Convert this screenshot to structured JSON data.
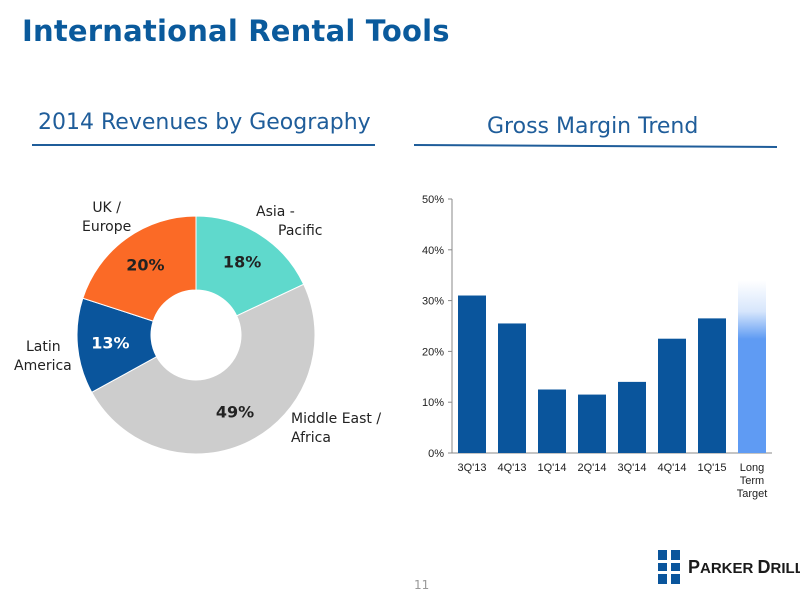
{
  "header": {
    "title": "International Rental Tools"
  },
  "left_panel": {
    "title": "2014 Revenues by Geography"
  },
  "right_panel": {
    "title": "Gross Margin Trend"
  },
  "footer": {
    "page_number": "11",
    "logo_text_1": "P",
    "logo_text_2": "ARKER ",
    "logo_text_3": "D",
    "logo_text_4": "RILLING"
  },
  "colors": {
    "teal": "#5fd9cc",
    "gray": "#cdcdcd",
    "navy": "#0a559c",
    "orange": "#fb6a26",
    "bar": "#0a559c",
    "target": "#5f9bf3",
    "title": "#1f5d9a"
  },
  "chart_data": [
    {
      "type": "pie",
      "title": "2014 Revenues by Geography",
      "slices": [
        {
          "label": "Asia - Pacific",
          "value": 18,
          "pct_label": "18%",
          "color": "#5fd9cc"
        },
        {
          "label": "Middle East / Africa",
          "value": 49,
          "pct_label": "49%",
          "color": "#cdcdcd"
        },
        {
          "label": "Latin America",
          "value": 13,
          "pct_label": "13%",
          "color": "#0a559c"
        },
        {
          "label": "UK / Europe",
          "value": 20,
          "pct_label": "20%",
          "color": "#fb6a26"
        }
      ],
      "labels": {
        "asia_1": "Asia -",
        "asia_2": "Pacific",
        "me_1": "Middle East /",
        "me_2": "Africa",
        "latam_1": "Latin",
        "latam_2": "America",
        "uk_1": "UK /",
        "uk_2": "Europe"
      }
    },
    {
      "type": "bar",
      "title": "Gross Margin Trend",
      "categories": [
        "3Q'13",
        "4Q'13",
        "1Q'14",
        "2Q'14",
        "3Q'14",
        "4Q'14",
        "1Q'15",
        "Long Term Target"
      ],
      "values": [
        31,
        25.5,
        12.5,
        11.5,
        14,
        22.5,
        26.5,
        30
      ],
      "target_range": [
        30,
        34
      ],
      "ylim": [
        0,
        50
      ],
      "yticks": [
        "0%",
        "10%",
        "20%",
        "30%",
        "40%",
        "50%"
      ],
      "grid": false
    }
  ]
}
